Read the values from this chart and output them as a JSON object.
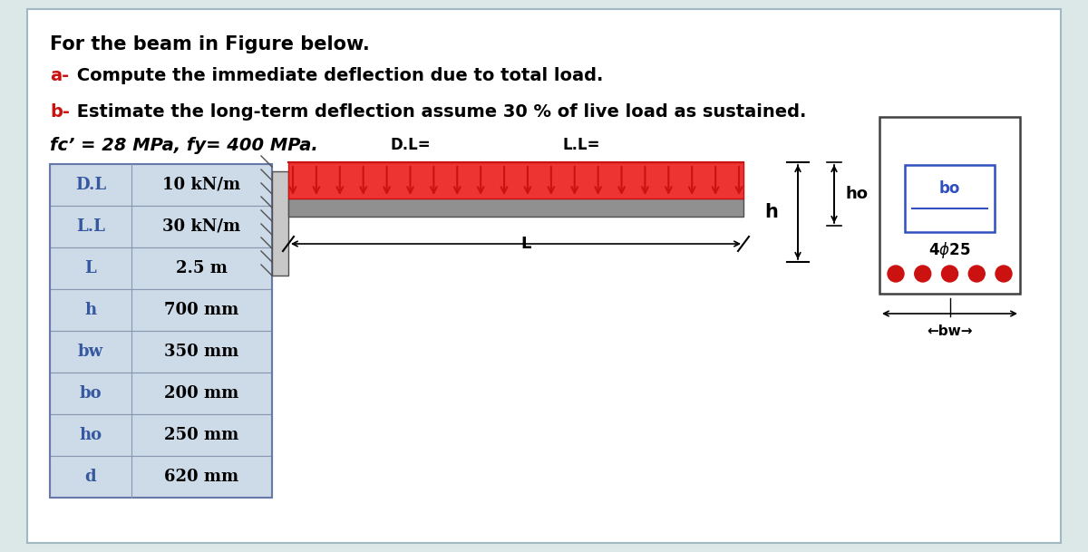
{
  "title_line1": "For the beam in Figure below.",
  "line_a_prefix": "a-",
  "line_a_text": " Compute the immediate deflection due to total load.",
  "line_b_prefix": "b-",
  "line_b_text": " Estimate the long-term deflection assume 30 % of live load as sustained.",
  "line_fc": "fc’ = 28 MPa, fy= 400 MPa.",
  "table_rows": [
    [
      "D.L",
      "10 kN/m"
    ],
    [
      "L.L",
      "30 kN/m"
    ],
    [
      "L",
      "2.5 m"
    ],
    [
      "h",
      "700 mm"
    ],
    [
      "bw",
      "350 mm"
    ],
    [
      "bo",
      "200 mm"
    ],
    [
      "ho",
      "250 mm"
    ],
    [
      "d",
      "620 mm"
    ]
  ],
  "DL_label": "D.L=",
  "LL_label": "L.L=",
  "L_label": "L",
  "bg_color": "#dce8e8",
  "content_bg": "#ffffff",
  "table_row_bg": "#cddae8",
  "table_text_color": "#3558a0",
  "red_color": "#cc1111",
  "beam_color": "#909090",
  "arrow_color": "#cc1111",
  "cs_border_color": "#404040",
  "inner_rect_color": "#3050c0"
}
